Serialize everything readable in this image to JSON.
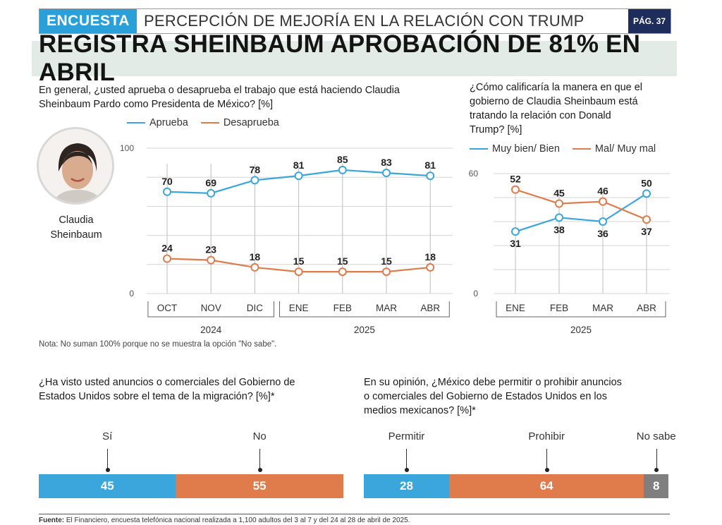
{
  "header": {
    "tag": "ENCUESTA",
    "section": "PERCEPCIÓN DE MEJORÍA EN LA RELACIÓN CON TRUMP",
    "page": "PÁG. 37"
  },
  "headline": "REGISTRA SHEINBAUM APROBACIÓN DE 81% EN ABRIL",
  "person": {
    "name_line1": "Claudia",
    "name_line2": "Sheinbaum"
  },
  "colors": {
    "blue": "#3aa6dc",
    "orange": "#e07b4c",
    "gray": "#7f7f7f"
  },
  "chart_data": [
    {
      "type": "line",
      "title": "En general, ¿usted aprueba o desaprueba el trabajo que está haciendo Claudia Sheinbaum Pardo como Presidenta de México? [%]",
      "title_line1": "En general, ¿usted aprueba o desaprueba el trabajo que está haciendo Claudia",
      "title_line2": "Sheinbaum Pardo como Presidenta de México? [%]",
      "categories": [
        "OCT",
        "NOV",
        "DIC",
        "ENE",
        "FEB",
        "MAR",
        "ABR"
      ],
      "year_groups": [
        {
          "label": "2024",
          "from": 0,
          "to": 2
        },
        {
          "label": "2025",
          "from": 3,
          "to": 6
        }
      ],
      "series": [
        {
          "name": "Aprueba",
          "color": "#3aa6dc",
          "values": [
            70,
            69,
            78,
            81,
            85,
            83,
            81
          ]
        },
        {
          "name": "Desaprueba",
          "color": "#e07b4c",
          "values": [
            24,
            23,
            18,
            15,
            15,
            15,
            18
          ]
        }
      ],
      "ylim": [
        0,
        100
      ],
      "yticks": [
        0,
        100
      ],
      "grid": true,
      "legend": "top"
    },
    {
      "type": "line",
      "title": "¿Cómo calificaría la manera en que el gobierno de Claudia Sheinbaum está tratando la relación con Donald Trump? [%]",
      "title_lines": [
        "¿Cómo calificaría la manera en que el",
        "gobierno de Claudia Sheinbaum está",
        "tratando la relación con Donald",
        "Trump? [%]"
      ],
      "categories": [
        "ENE",
        "FEB",
        "MAR",
        "ABR"
      ],
      "year_groups": [
        {
          "label": "2025",
          "from": 0,
          "to": 3
        }
      ],
      "series": [
        {
          "name": "Muy bien/ Bien",
          "color": "#3aa6dc",
          "values": [
            31,
            38,
            36,
            50
          ]
        },
        {
          "name": "Mal/ Muy mal",
          "color": "#e07b4c",
          "values": [
            52,
            45,
            46,
            37
          ]
        }
      ],
      "ylim": [
        0,
        60
      ],
      "yticks": [
        0,
        60
      ],
      "grid": true,
      "legend": "top"
    },
    {
      "type": "bar",
      "title": "¿Ha visto usted anuncios o comerciales del Gobierno de Estados Unidos sobre el tema de la migración? [%]*",
      "title_line1": "¿Ha visto usted anuncios o comerciales del Gobierno de",
      "title_line2": "Estados Unidos sobre el tema de la migración? [%]*",
      "categories": [
        "Sí",
        "No"
      ],
      "values": [
        45,
        55
      ],
      "colors": [
        "#3aa6dc",
        "#e07b4c"
      ]
    },
    {
      "type": "bar",
      "title": "En su opinión, ¿México debe permitir o prohibir anuncios o comerciales del Gobierno de Estados Unidos en los medios mexicanos? [%]*",
      "title_lines": [
        "En su opinión, ¿México debe permitir o prohibir anuncios",
        "o comerciales del Gobierno de Estados Unidos en los",
        "medios mexicanos? [%]*"
      ],
      "categories": [
        "Permitir",
        "Prohibir",
        "No sabe"
      ],
      "values": [
        28,
        64,
        8
      ],
      "colors": [
        "#3aa6dc",
        "#e07b4c",
        "#7f7f7f"
      ]
    }
  ],
  "note": "Nota: No suman 100% porque no se muestra la opción \"No sabe\".",
  "source_label": "Fuente:",
  "source_text": " El Financiero, encuesta telefónica nacional realizada a 1,100 adultos del 3 al 7 y del 24 al 28 de abril de 2025."
}
